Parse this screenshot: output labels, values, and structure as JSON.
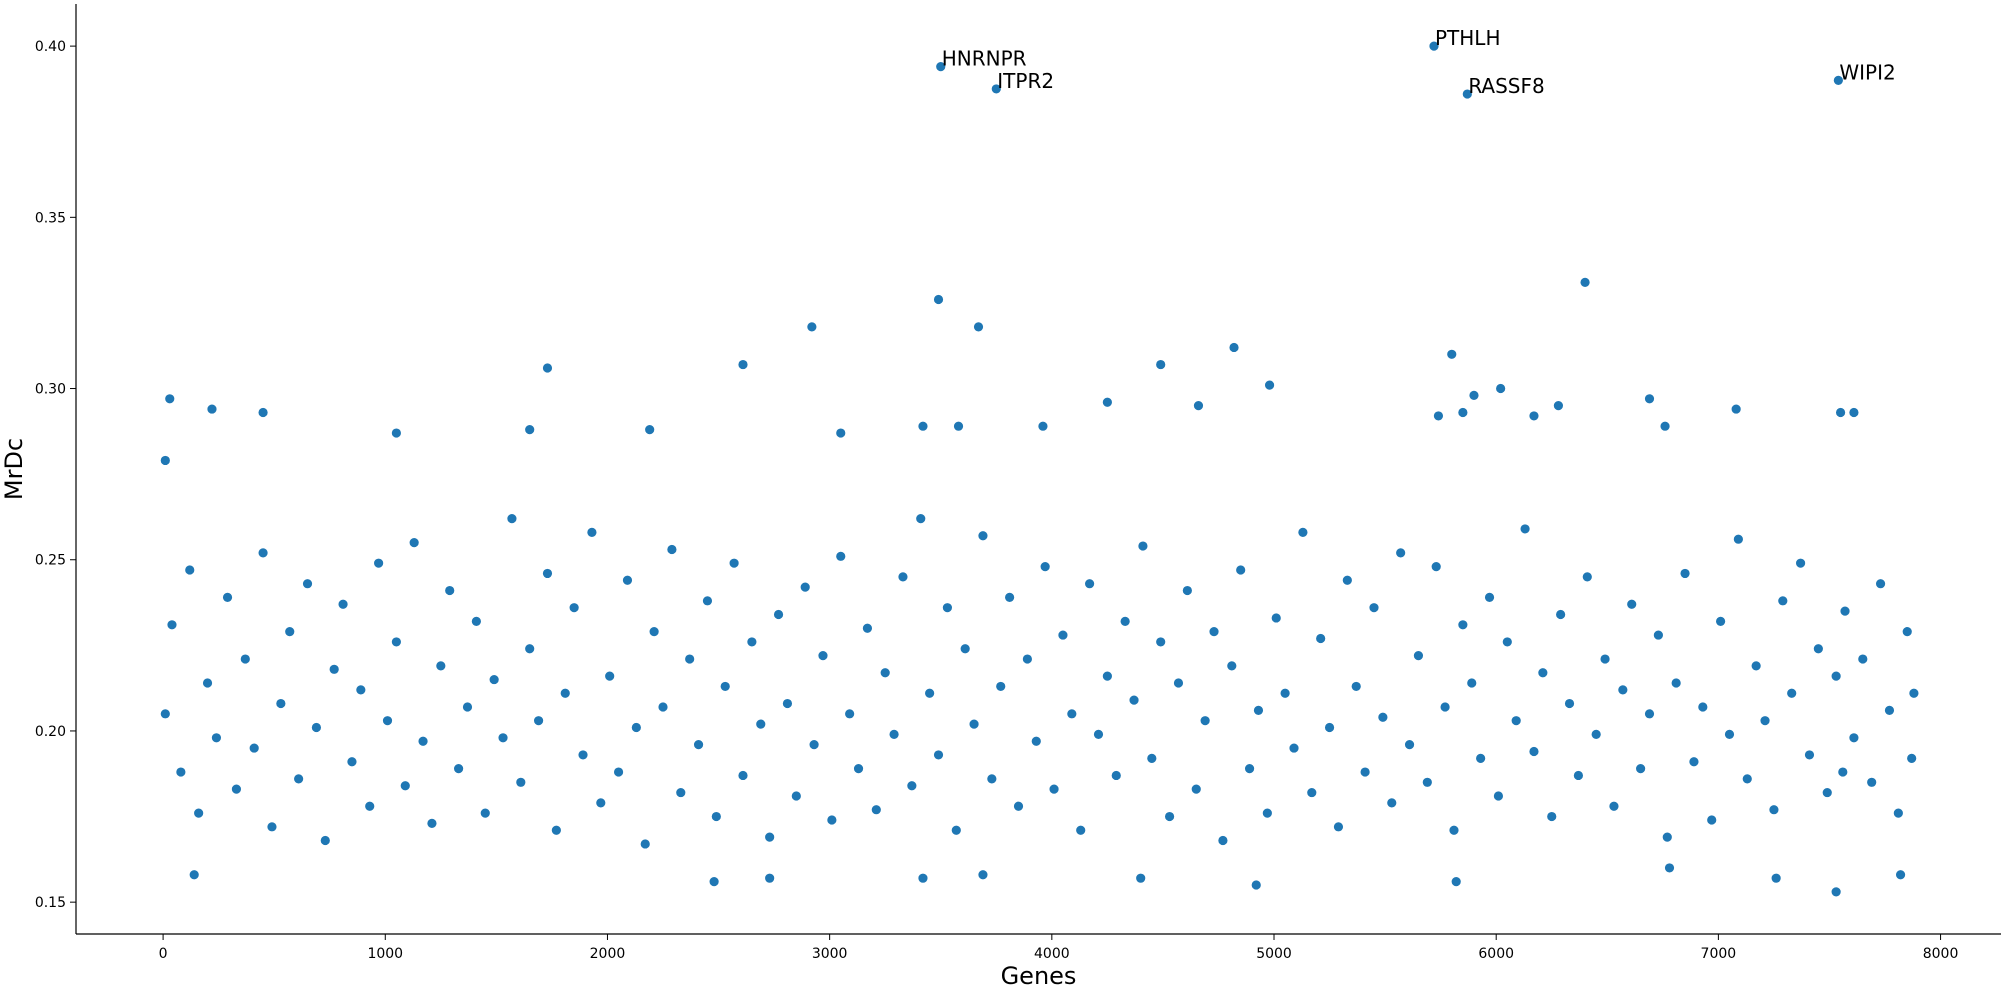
{
  "chart_data": {
    "type": "scatter",
    "xlabel": "Genes",
    "ylabel": "MrDc",
    "color": "#1f77b4",
    "xlim": [
      -392,
      8272
    ],
    "ylim": [
      0.1407,
      0.4123
    ],
    "xticks": [
      0,
      1000,
      2000,
      3000,
      4000,
      5000,
      6000,
      7000,
      8000
    ],
    "yticks": [
      0.15,
      {
        "value": 0.2,
        "label": "0.20"
      },
      0.25,
      {
        "value": 0.3,
        "label": "0.30"
      },
      0.35,
      {
        "value": 0.4,
        "label": "0.40"
      }
    ],
    "grid": false,
    "annotations": [
      {
        "text": "HNRNPR",
        "x": 3500,
        "y": 0.394
      },
      {
        "text": "ITPR2",
        "x": 3750,
        "y": 0.3875
      },
      {
        "text": "PTHLH",
        "x": 5720,
        "y": 0.4
      },
      {
        "text": "RASSF8",
        "x": 5870,
        "y": 0.386
      },
      {
        "text": "WIPI2",
        "x": 7540,
        "y": 0.39
      }
    ],
    "x": [
      3500,
      3750,
      5720,
      5870,
      7540,
      6400,
      3490,
      2920,
      3670,
      4820,
      5800,
      1730,
      2610,
      4490,
      4980,
      6020,
      30,
      6690,
      5850,
      7550,
      7610,
      450,
      220,
      7080,
      10,
      4250,
      6280,
      4660,
      3960,
      3580,
      3420,
      1650,
      2190,
      1050,
      3050,
      5900,
      5740,
      6170,
      6760,
      140,
      2480,
      2730,
      3420,
      3690,
      4920,
      5820,
      7260,
      7530,
      7820,
      6780,
      4400,
      10,
      40,
      80,
      120,
      160,
      200,
      240,
      290,
      330,
      370,
      410,
      450,
      490,
      530,
      570,
      610,
      650,
      690,
      730,
      770,
      810,
      850,
      890,
      930,
      970,
      1010,
      1050,
      1090,
      1130,
      1170,
      1210,
      1250,
      1290,
      1330,
      1370,
      1410,
      1450,
      1490,
      1530,
      1570,
      1610,
      1650,
      1690,
      1730,
      1770,
      1810,
      1850,
      1890,
      1930,
      1970,
      2010,
      2050,
      2090,
      2130,
      2170,
      2210,
      2250,
      2290,
      2330,
      2370,
      2410,
      2450,
      2490,
      2530,
      2570,
      2610,
      2650,
      2690,
      2730,
      2770,
      2810,
      2850,
      2890,
      2930,
      2970,
      3010,
      3050,
      3090,
      3130,
      3170,
      3210,
      3250,
      3290,
      3330,
      3370,
      3410,
      3450,
      3490,
      3530,
      3570,
      3610,
      3650,
      3690,
      3730,
      3770,
      3810,
      3850,
      3890,
      3930,
      3970,
      4010,
      4050,
      4090,
      4130,
      4170,
      4210,
      4250,
      4290,
      4330,
      4370,
      4410,
      4450,
      4490,
      4530,
      4570,
      4610,
      4650,
      4690,
      4730,
      4770,
      4810,
      4850,
      4890,
      4930,
      4970,
      5010,
      5050,
      5090,
      5130,
      5170,
      5210,
      5250,
      5290,
      5330,
      5370,
      5410,
      5450,
      5490,
      5530,
      5570,
      5610,
      5650,
      5690,
      5730,
      5770,
      5810,
      5850,
      5890,
      5930,
      5970,
      6010,
      6050,
      6090,
      6130,
      6170,
      6210,
      6250,
      6290,
      6330,
      6370,
      6410,
      6450,
      6490,
      6530,
      6570,
      6610,
      6650,
      6690,
      6730,
      6770,
      6810,
      6850,
      6890,
      6930,
      6970,
      7010,
      7050,
      7090,
      7130,
      7170,
      7210,
      7250,
      7290,
      7330,
      7370,
      7410,
      7450,
      7490,
      7530,
      7570,
      7610,
      7650,
      7690,
      7730,
      7770,
      7810,
      7850,
      7870,
      7880,
      7560
    ],
    "values": [
      0.394,
      0.3875,
      0.4,
      0.386,
      0.39,
      0.331,
      0.326,
      0.318,
      0.318,
      0.312,
      0.31,
      0.306,
      0.307,
      0.307,
      0.301,
      0.3,
      0.297,
      0.297,
      0.293,
      0.293,
      0.293,
      0.293,
      0.294,
      0.294,
      0.279,
      0.296,
      0.295,
      0.295,
      0.289,
      0.289,
      0.289,
      0.288,
      0.288,
      0.287,
      0.287,
      0.298,
      0.292,
      0.292,
      0.289,
      0.158,
      0.156,
      0.157,
      0.157,
      0.158,
      0.155,
      0.156,
      0.157,
      0.153,
      0.158,
      0.16,
      0.157,
      0.205,
      0.231,
      0.188,
      0.247,
      0.176,
      0.214,
      0.198,
      0.239,
      0.183,
      0.221,
      0.195,
      0.252,
      0.172,
      0.208,
      0.229,
      0.186,
      0.243,
      0.201,
      0.168,
      0.218,
      0.237,
      0.191,
      0.212,
      0.178,
      0.249,
      0.203,
      0.226,
      0.184,
      0.255,
      0.197,
      0.173,
      0.219,
      0.241,
      0.189,
      0.207,
      0.232,
      0.176,
      0.215,
      0.198,
      0.262,
      0.185,
      0.224,
      0.203,
      0.246,
      0.171,
      0.211,
      0.236,
      0.193,
      0.258,
      0.179,
      0.216,
      0.188,
      0.244,
      0.201,
      0.167,
      0.229,
      0.207,
      0.253,
      0.182,
      0.221,
      0.196,
      0.238,
      0.175,
      0.213,
      0.249,
      0.187,
      0.226,
      0.202,
      0.169,
      0.234,
      0.208,
      0.181,
      0.242,
      0.196,
      0.222,
      0.174,
      0.251,
      0.205,
      0.189,
      0.23,
      0.177,
      0.217,
      0.199,
      0.245,
      0.184,
      0.262,
      0.211,
      0.193,
      0.236,
      0.171,
      0.224,
      0.202,
      0.257,
      0.186,
      0.213,
      0.239,
      0.178,
      0.221,
      0.197,
      0.248,
      0.183,
      0.228,
      0.205,
      0.171,
      0.243,
      0.199,
      0.216,
      0.187,
      0.232,
      0.209,
      0.254,
      0.192,
      0.226,
      0.175,
      0.214,
      0.241,
      0.183,
      0.203,
      0.229,
      0.168,
      0.219,
      0.247,
      0.189,
      0.206,
      0.176,
      0.233,
      0.211,
      0.195,
      0.258,
      0.182,
      0.227,
      0.201,
      0.172,
      0.244,
      0.213,
      0.188,
      0.236,
      0.204,
      0.179,
      0.252,
      0.196,
      0.222,
      0.185,
      0.248,
      0.207,
      0.171,
      0.231,
      0.214,
      0.192,
      0.239,
      0.181,
      0.226,
      0.203,
      0.259,
      0.194,
      0.217,
      0.175,
      0.234,
      0.208,
      0.187,
      0.245,
      0.199,
      0.221,
      0.178,
      0.212,
      0.237,
      0.189,
      0.205,
      0.228,
      0.169,
      0.214,
      0.246,
      0.191,
      0.207,
      0.174,
      0.232,
      0.199,
      0.256,
      0.186,
      0.219,
      0.203,
      0.177,
      0.238,
      0.211,
      0.249,
      0.193,
      0.224,
      0.182,
      0.216,
      0.235,
      0.198,
      0.221,
      0.185,
      0.243,
      0.206,
      0.176,
      0.229,
      0.192,
      0.211,
      0.188
    ]
  }
}
